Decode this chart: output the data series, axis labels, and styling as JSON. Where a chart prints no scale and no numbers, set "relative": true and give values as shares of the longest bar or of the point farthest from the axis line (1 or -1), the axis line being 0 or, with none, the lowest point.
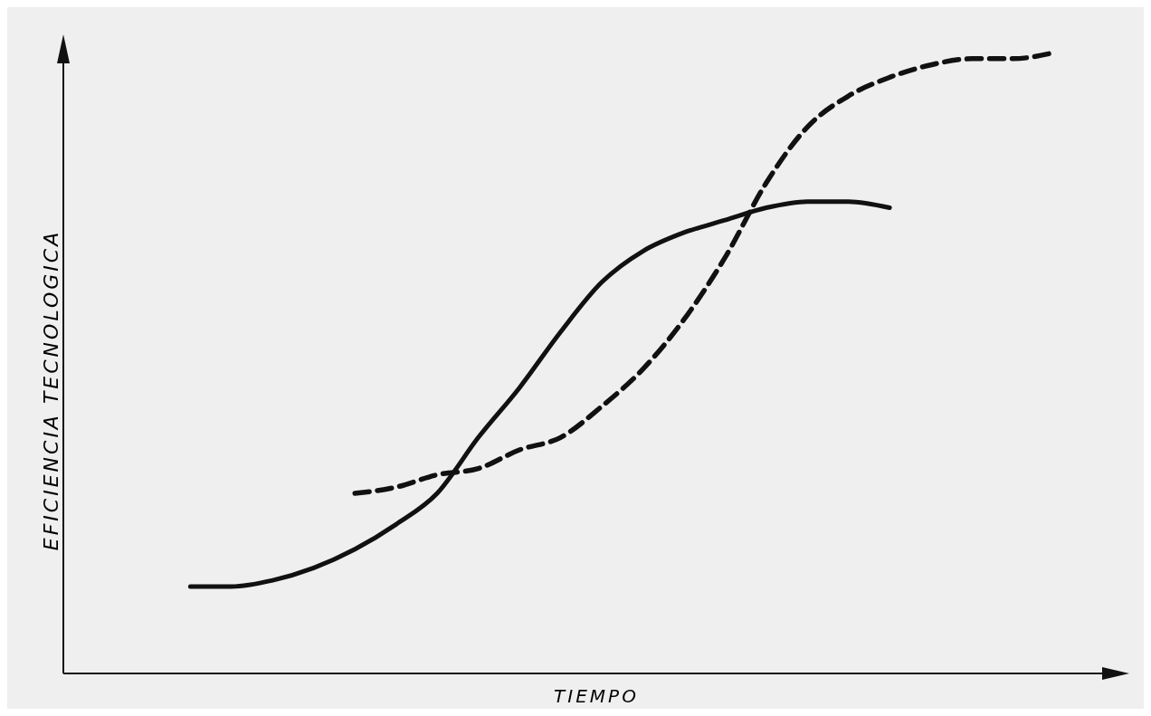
{
  "chart_data": {
    "type": "line",
    "relative": true,
    "xlabel": "TIEMPO",
    "ylabel": "EFICIENCIA TECNOLOGICA",
    "categories": [
      null,
      null,
      null,
      null,
      null,
      null,
      null,
      null,
      null,
      null,
      null,
      null,
      null,
      null,
      null,
      null,
      null,
      null,
      null,
      null,
      null,
      null,
      null,
      null,
      null
    ],
    "series": [
      {
        "color": "#111111",
        "line_style": "solid",
        "values": [
          null,
          null,
          null,
          0.14,
          0.14,
          0.15,
          0.17,
          0.2,
          0.24,
          0.29,
          0.38,
          0.46,
          0.55,
          0.63,
          0.68,
          0.71,
          0.73,
          0.75,
          0.76,
          0.76,
          0.75,
          null,
          null,
          null,
          null
        ]
      },
      {
        "color": "#111111",
        "line_style": "dashed",
        "values": [
          null,
          null,
          null,
          null,
          null,
          null,
          null,
          0.29,
          0.3,
          0.32,
          0.33,
          0.36,
          0.38,
          0.43,
          0.49,
          0.57,
          0.67,
          0.79,
          0.88,
          0.93,
          0.96,
          0.98,
          0.99,
          0.99,
          1
        ]
      }
    ]
  }
}
